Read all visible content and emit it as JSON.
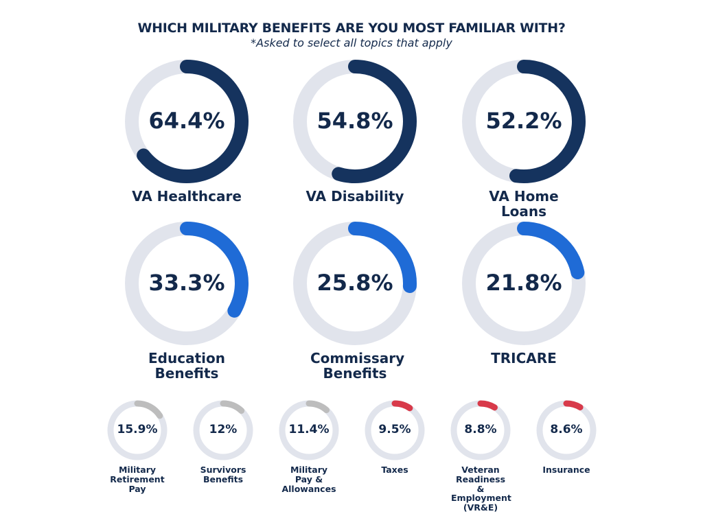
{
  "chart_data": {
    "type": "donut",
    "title": "WHICH MILITARY BENEFITS ARE YOU MOST FAMILIAR WITH?",
    "subtitle": "*Asked to select all topics that apply",
    "unit": "%",
    "track_color": "#e1e4ec",
    "items": [
      {
        "label": "VA Healthcare",
        "value": 64.4,
        "display": "64.4%",
        "color": "#15335e"
      },
      {
        "label": "VA Disability",
        "value": 54.8,
        "display": "54.8%",
        "color": "#15335e"
      },
      {
        "label": "VA Home Loans",
        "value": 52.2,
        "display": "52.2%",
        "color": "#15335e"
      },
      {
        "label": "Education Benefits",
        "value": 33.3,
        "display": "33.3%",
        "color": "#1f6bd6"
      },
      {
        "label": "Commissary Benefits",
        "value": 25.8,
        "display": "25.8%",
        "color": "#1f6bd6"
      },
      {
        "label": "TRICARE",
        "value": 21.8,
        "display": "21.8%",
        "color": "#1f6bd6"
      },
      {
        "label": "Military Retirement Pay",
        "value": 15.9,
        "display": "15.9%",
        "color": "#bdbdbd"
      },
      {
        "label": "Survivors Benefits",
        "value": 12,
        "display": "12%",
        "color": "#bdbdbd"
      },
      {
        "label": "Military Pay & Allowances",
        "value": 11.4,
        "display": "11.4%",
        "color": "#bdbdbd"
      },
      {
        "label": "Taxes",
        "value": 9.5,
        "display": "9.5%",
        "color": "#d83a4a"
      },
      {
        "label": "Veteran Readiness & Employment (VR&E)",
        "value": 8.8,
        "display": "8.8%",
        "color": "#d83a4a"
      },
      {
        "label": "Insurance",
        "value": 8.6,
        "display": "8.6%",
        "color": "#d83a4a"
      }
    ]
  }
}
